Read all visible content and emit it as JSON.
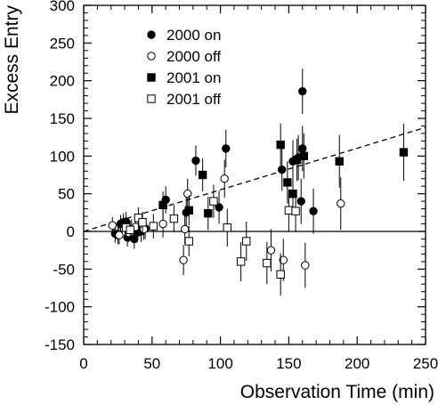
{
  "chart_data": {
    "type": "scatter",
    "title": "",
    "xlabel": "Observation Time (min)",
    "ylabel": "Excess Entry",
    "xlim": [
      0,
      250
    ],
    "ylim": [
      -150,
      300
    ],
    "xticks": [
      0,
      50,
      100,
      150,
      200,
      250
    ],
    "yticks": [
      -150,
      -100,
      -50,
      0,
      50,
      100,
      150,
      200,
      250,
      300
    ],
    "grid": false,
    "legend_position": "top-left",
    "zero_line": true,
    "fit_line": {
      "style": "dashed",
      "points": [
        [
          0,
          0
        ],
        [
          250,
          138
        ]
      ]
    },
    "series": [
      {
        "name": "2000 on",
        "marker": "filled-circle",
        "points": [
          {
            "x": 23,
            "y": -3,
            "err": 12
          },
          {
            "x": 25,
            "y": -5,
            "err": 12
          },
          {
            "x": 27,
            "y": 10,
            "err": 12
          },
          {
            "x": 29,
            "y": 12,
            "err": 12
          },
          {
            "x": 31,
            "y": 13,
            "err": 13
          },
          {
            "x": 32,
            "y": -8,
            "err": 12
          },
          {
            "x": 35,
            "y": 3,
            "err": 13
          },
          {
            "x": 37,
            "y": -10,
            "err": 13
          },
          {
            "x": 39,
            "y": -2,
            "err": 13
          },
          {
            "x": 42,
            "y": 0,
            "err": 14
          },
          {
            "x": 45,
            "y": 4,
            "err": 14
          },
          {
            "x": 60,
            "y": 42,
            "err": 18
          },
          {
            "x": 75,
            "y": 25,
            "err": 20
          },
          {
            "x": 82,
            "y": 94,
            "err": 20
          },
          {
            "x": 99,
            "y": 32,
            "err": 22
          },
          {
            "x": 104,
            "y": 110,
            "err": 25
          },
          {
            "x": 145,
            "y": 82,
            "err": 28
          },
          {
            "x": 153,
            "y": 93,
            "err": 28
          },
          {
            "x": 157,
            "y": 98,
            "err": 30
          },
          {
            "x": 159,
            "y": 40,
            "err": 30
          },
          {
            "x": 160,
            "y": 110,
            "err": 30
          },
          {
            "x": 160,
            "y": 186,
            "err": 30
          },
          {
            "x": 168,
            "y": 27,
            "err": 30
          }
        ]
      },
      {
        "name": "2000 off",
        "marker": "open-circle",
        "points": [
          {
            "x": 21,
            "y": 8,
            "err": 11
          },
          {
            "x": 26,
            "y": -5,
            "err": 12
          },
          {
            "x": 33,
            "y": -2,
            "err": 12
          },
          {
            "x": 38,
            "y": 6,
            "err": 13
          },
          {
            "x": 44,
            "y": 3,
            "err": 14
          },
          {
            "x": 58,
            "y": 10,
            "err": 18
          },
          {
            "x": 73,
            "y": -38,
            "err": 20
          },
          {
            "x": 74,
            "y": 3,
            "err": 20
          },
          {
            "x": 76,
            "y": 50,
            "err": 20
          },
          {
            "x": 103,
            "y": 70,
            "err": 25
          },
          {
            "x": 137,
            "y": -25,
            "err": 28
          },
          {
            "x": 146,
            "y": -38,
            "err": 28
          },
          {
            "x": 162,
            "y": -45,
            "err": 30
          },
          {
            "x": 188,
            "y": 37,
            "err": 35
          }
        ]
      },
      {
        "name": "2001 on",
        "marker": "filled-square",
        "points": [
          {
            "x": 58,
            "y": 35,
            "err": 18
          },
          {
            "x": 77,
            "y": 28,
            "err": 20
          },
          {
            "x": 87,
            "y": 75,
            "err": 22
          },
          {
            "x": 91,
            "y": 24,
            "err": 22
          },
          {
            "x": 144,
            "y": 115,
            "err": 28
          },
          {
            "x": 149,
            "y": 65,
            "err": 28
          },
          {
            "x": 153,
            "y": 50,
            "err": 28
          },
          {
            "x": 156,
            "y": 95,
            "err": 28
          },
          {
            "x": 161,
            "y": 100,
            "err": 30
          },
          {
            "x": 187,
            "y": 93,
            "err": 35
          },
          {
            "x": 234,
            "y": 105,
            "err": 38
          }
        ]
      },
      {
        "name": "2001 off",
        "marker": "open-square",
        "points": [
          {
            "x": 31,
            "y": 5,
            "err": 12
          },
          {
            "x": 34,
            "y": 2,
            "err": 12
          },
          {
            "x": 40,
            "y": 18,
            "err": 14
          },
          {
            "x": 43,
            "y": 12,
            "err": 14
          },
          {
            "x": 51,
            "y": 7,
            "err": 16
          },
          {
            "x": 66,
            "y": 17,
            "err": 18
          },
          {
            "x": 77,
            "y": -13,
            "err": 20
          },
          {
            "x": 95,
            "y": 40,
            "err": 22
          },
          {
            "x": 105,
            "y": 5,
            "err": 25
          },
          {
            "x": 115,
            "y": -40,
            "err": 26
          },
          {
            "x": 119,
            "y": -13,
            "err": 26
          },
          {
            "x": 134,
            "y": -42,
            "err": 28
          },
          {
            "x": 144,
            "y": -57,
            "err": 28
          },
          {
            "x": 150,
            "y": 28,
            "err": 28
          },
          {
            "x": 155,
            "y": 27,
            "err": 28
          }
        ]
      }
    ]
  }
}
